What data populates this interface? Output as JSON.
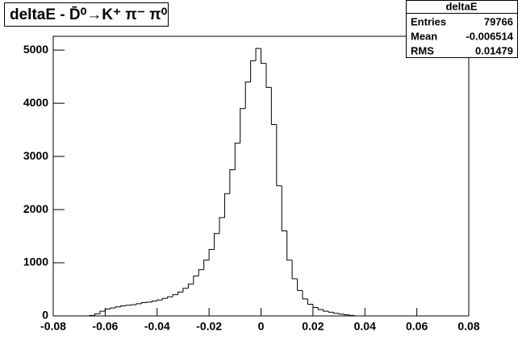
{
  "chart_data": {
    "type": "histogram",
    "title": "deltaE - D̄⁰→K⁺ π⁻ π⁰",
    "bins": [
      -0.08,
      -0.078,
      -0.076,
      -0.074,
      -0.072,
      -0.07,
      -0.068,
      -0.066,
      -0.064,
      -0.062,
      -0.06,
      -0.058,
      -0.056,
      -0.054,
      -0.052,
      -0.05,
      -0.048,
      -0.046,
      -0.044,
      -0.042,
      -0.04,
      -0.038,
      -0.036,
      -0.034,
      -0.032,
      -0.03,
      -0.028,
      -0.026,
      -0.024,
      -0.022,
      -0.02,
      -0.018,
      -0.016,
      -0.014,
      -0.012,
      -0.01,
      -0.008,
      -0.006,
      -0.004,
      -0.002,
      0,
      0.002,
      0.004,
      0.006,
      0.008,
      0.01,
      0.012,
      0.014,
      0.016,
      0.018,
      0.02,
      0.022,
      0.024,
      0.026,
      0.028,
      0.03,
      0.032,
      0.034,
      0.036,
      0.038,
      0.04,
      0.042,
      0.044,
      0.046,
      0.048,
      0.05,
      0.052,
      0.054,
      0.056,
      0.058,
      0.06,
      0.062,
      0.064,
      0.066,
      0.068,
      0.07,
      0.072,
      0.074,
      0.076,
      0.078,
      0.08
    ],
    "values": [
      0,
      0,
      0,
      0,
      0,
      0,
      0,
      10,
      40,
      90,
      130,
      150,
      170,
      190,
      200,
      210,
      230,
      250,
      260,
      280,
      300,
      330,
      360,
      400,
      450,
      520,
      600,
      750,
      870,
      1050,
      1250,
      1550,
      1850,
      2300,
      2750,
      3250,
      3900,
      4400,
      4800,
      5030,
      4750,
      4300,
      3600,
      2450,
      1600,
      1050,
      700,
      480,
      320,
      220,
      160,
      120,
      90,
      70,
      50,
      35,
      20,
      10,
      0,
      0,
      0,
      0,
      0,
      0,
      0,
      0,
      0,
      0,
      0,
      0,
      0,
      0,
      0,
      0,
      0,
      0,
      0,
      0,
      0,
      0
    ],
    "color": "#000000",
    "xlim": [
      -0.08,
      0.08
    ],
    "xticks": [
      -0.08,
      -0.06,
      -0.04,
      -0.02,
      0,
      0.02,
      0.04,
      0.06,
      0.08
    ],
    "ylim": [
      0,
      5260
    ],
    "yticks": [
      0,
      1000,
      2000,
      3000,
      4000,
      5000
    ],
    "stats": {
      "name": "deltaE",
      "rows": [
        [
          "Entries",
          79766
        ],
        [
          "Mean",
          -0.006514
        ],
        [
          "RMS",
          0.01479
        ]
      ]
    }
  }
}
